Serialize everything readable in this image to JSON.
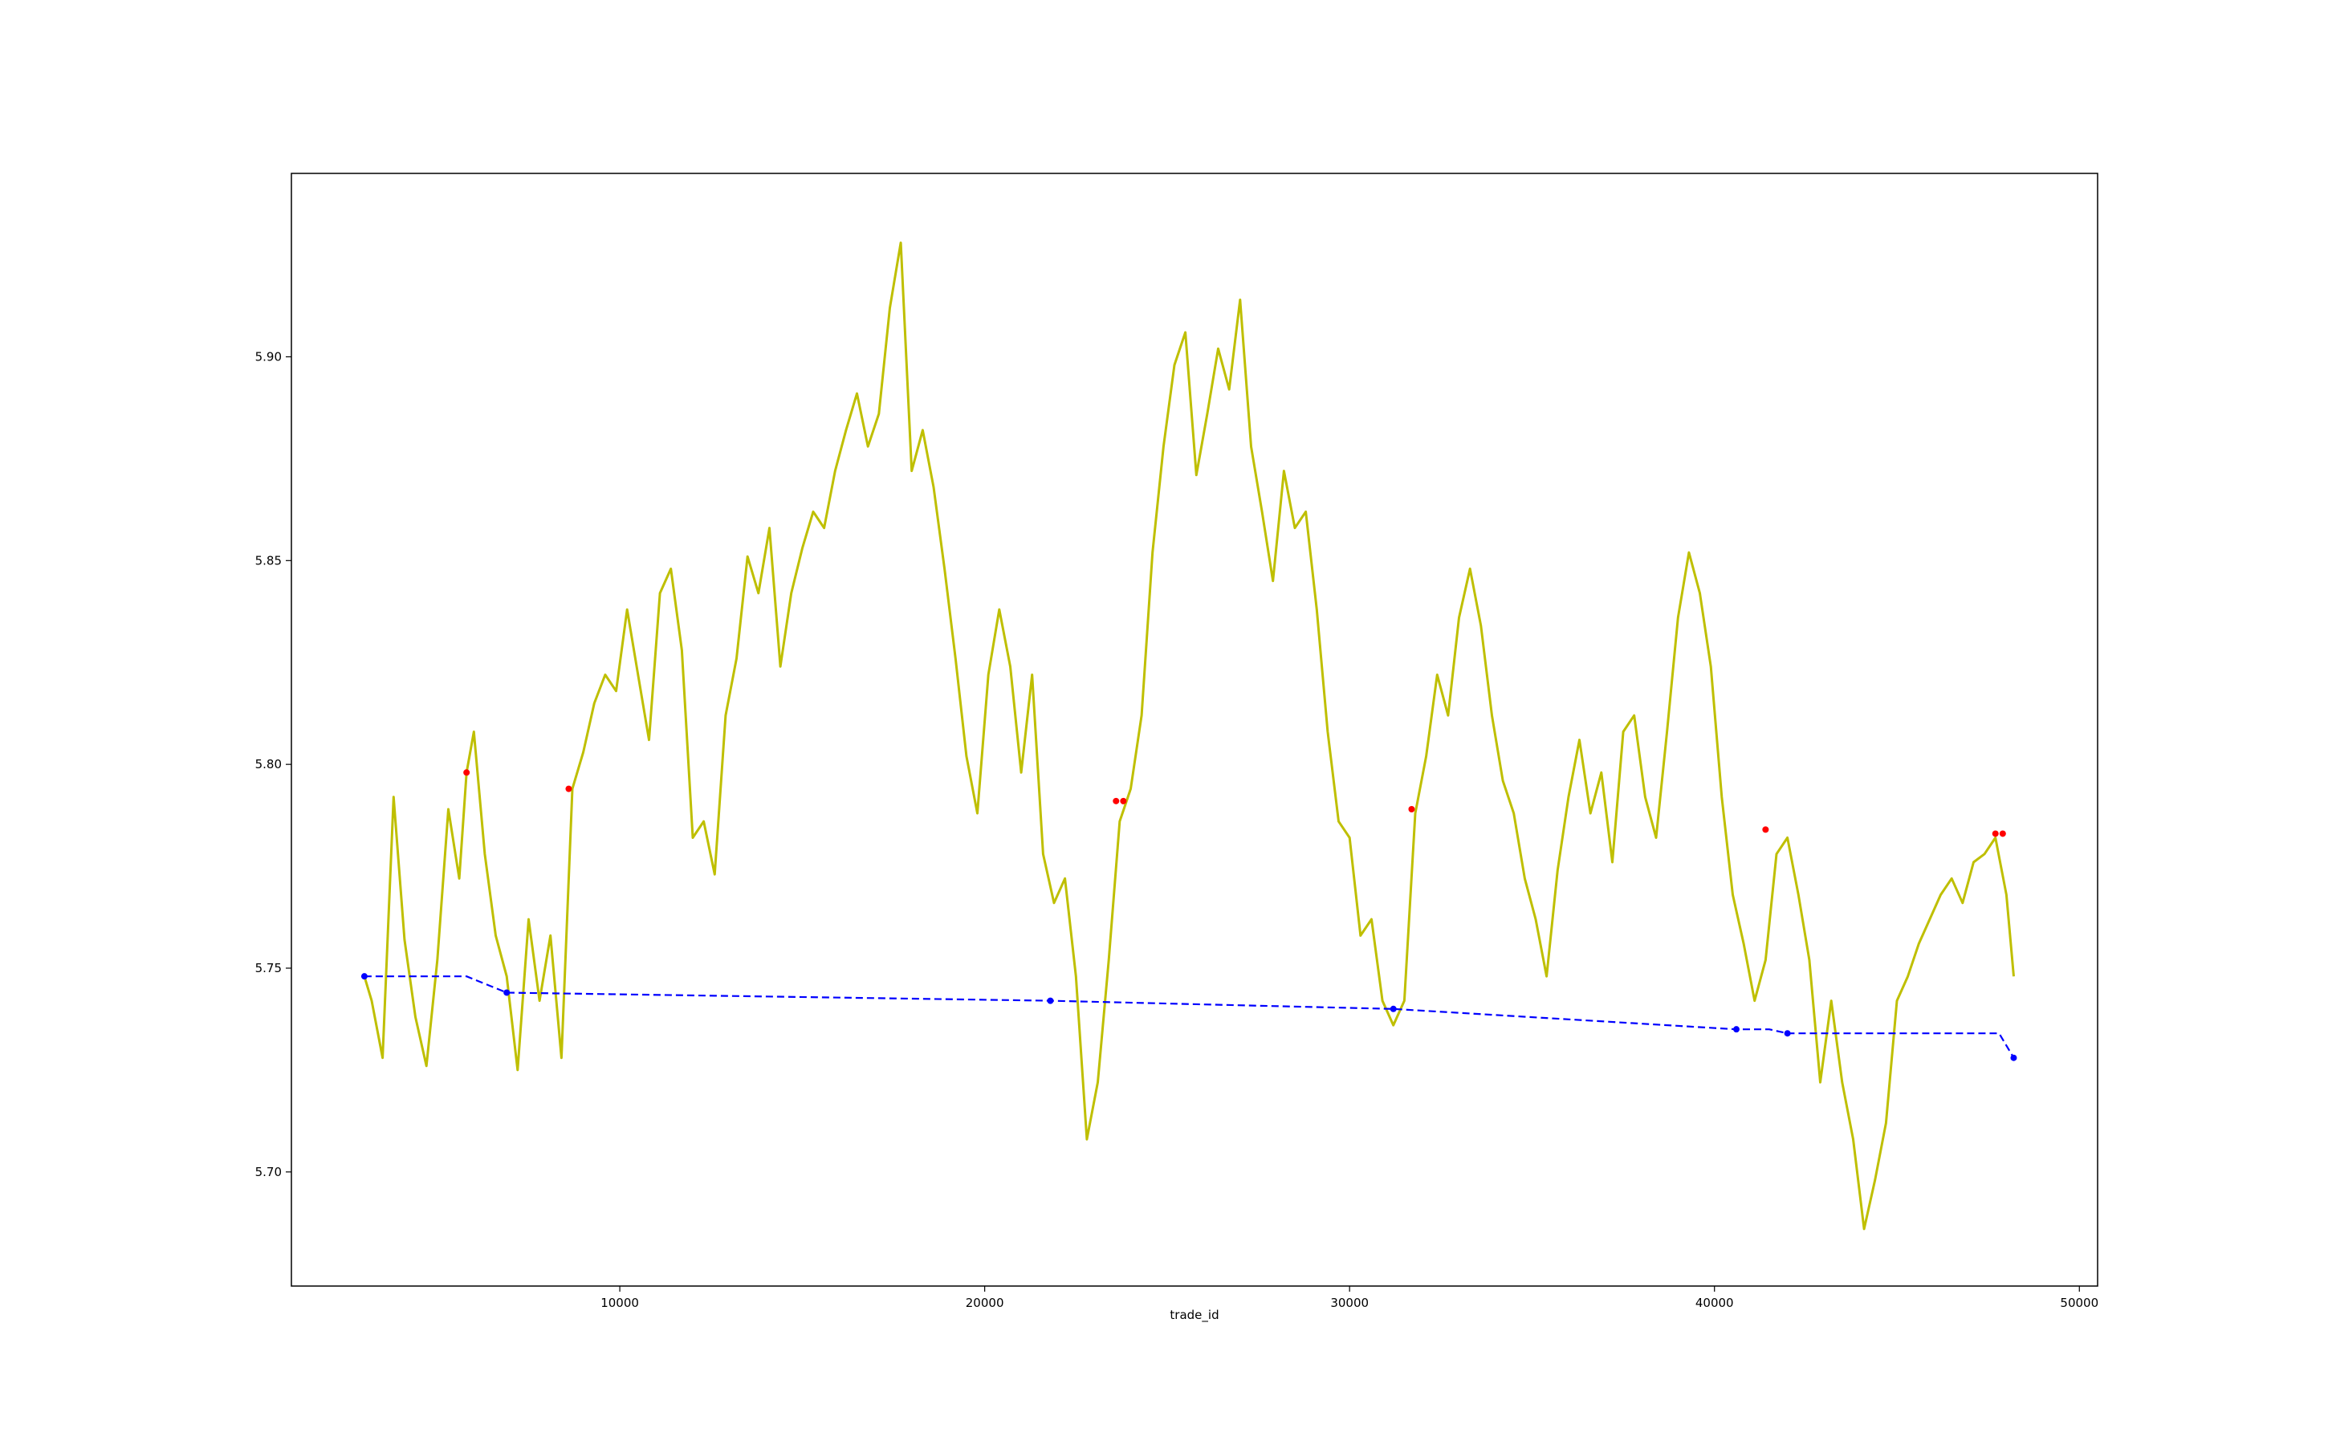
{
  "chart_data": {
    "type": "line",
    "title": "",
    "xlabel": "trade_id",
    "ylabel": "",
    "xlim": [
      1000,
      50500
    ],
    "ylim": [
      5.672,
      5.945
    ],
    "grid": false,
    "legend": "none",
    "x_ticks": [
      {
        "value": 10000,
        "label": "10000"
      },
      {
        "value": 20000,
        "label": "20000"
      },
      {
        "value": 30000,
        "label": "30000"
      },
      {
        "value": 40000,
        "label": "40000"
      },
      {
        "value": 50000,
        "label": "50000"
      }
    ],
    "y_ticks": [
      {
        "value": 5.7,
        "label": "5.70"
      },
      {
        "value": 5.75,
        "label": "5.75"
      },
      {
        "value": 5.8,
        "label": "5.80"
      },
      {
        "value": 5.85,
        "label": "5.85"
      },
      {
        "value": 5.9,
        "label": "5.90"
      }
    ],
    "series": [
      {
        "style": "solid",
        "color": "#bfbf00",
        "x": [
          3000,
          3200,
          3500,
          3800,
          4100,
          4400,
          4700,
          5000,
          5300,
          5600,
          5800,
          6000,
          6300,
          6600,
          6900,
          7200,
          7500,
          7800,
          8100,
          8400,
          8700,
          9000,
          9300,
          9600,
          9900,
          10200,
          10500,
          10800,
          11100,
          11400,
          11700,
          12000,
          12300,
          12600,
          12900,
          13200,
          13500,
          13800,
          14100,
          14400,
          14700,
          15000,
          15300,
          15600,
          15900,
          16200,
          16500,
          16800,
          17100,
          17400,
          17700,
          18000,
          18300,
          18600,
          18900,
          19200,
          19500,
          19800,
          20100,
          20400,
          20700,
          21000,
          21300,
          21600,
          21900,
          22200,
          22500,
          22800,
          23100,
          23400,
          23700,
          24000,
          24300,
          24600,
          24900,
          25200,
          25500,
          25800,
          26100,
          26400,
          26700,
          27000,
          27300,
          27600,
          27900,
          28200,
          28500,
          28800,
          29100,
          29400,
          29700,
          30000,
          30300,
          30600,
          30900,
          31200,
          31500,
          31800,
          32100,
          32400,
          32700,
          33000,
          33300,
          33600,
          33900,
          34200,
          34500,
          34800,
          35100,
          35400,
          35700,
          36000,
          36300,
          36600,
          36900,
          37200,
          37500,
          37800,
          38100,
          38400,
          38700,
          39000,
          39300,
          39600,
          39900,
          40200,
          40500,
          40800,
          41100,
          41400,
          41700,
          42000,
          42300,
          42600,
          42900,
          43200,
          43500,
          43800,
          44100,
          44400,
          44700,
          45000,
          45300,
          45600,
          45900,
          46200,
          46500,
          46800,
          47100,
          47400,
          47700,
          48000,
          48200
        ],
        "y": [
          5.748,
          5.742,
          5.728,
          5.792,
          5.757,
          5.738,
          5.726,
          5.752,
          5.789,
          5.772,
          5.798,
          5.808,
          5.778,
          5.758,
          5.748,
          5.725,
          5.762,
          5.742,
          5.758,
          5.728,
          5.794,
          5.803,
          5.815,
          5.822,
          5.818,
          5.838,
          5.822,
          5.806,
          5.842,
          5.848,
          5.828,
          5.782,
          5.786,
          5.773,
          5.812,
          5.826,
          5.851,
          5.842,
          5.858,
          5.824,
          5.842,
          5.853,
          5.862,
          5.858,
          5.872,
          5.882,
          5.891,
          5.878,
          5.886,
          5.912,
          5.928,
          5.872,
          5.882,
          5.868,
          5.848,
          5.826,
          5.802,
          5.788,
          5.822,
          5.838,
          5.824,
          5.798,
          5.822,
          5.778,
          5.766,
          5.772,
          5.748,
          5.708,
          5.722,
          5.752,
          5.786,
          5.794,
          5.812,
          5.852,
          5.878,
          5.898,
          5.906,
          5.871,
          5.886,
          5.902,
          5.892,
          5.914,
          5.878,
          5.862,
          5.845,
          5.872,
          5.858,
          5.862,
          5.838,
          5.808,
          5.786,
          5.782,
          5.758,
          5.762,
          5.742,
          5.736,
          5.742,
          5.788,
          5.802,
          5.822,
          5.812,
          5.836,
          5.848,
          5.834,
          5.812,
          5.796,
          5.788,
          5.772,
          5.762,
          5.748,
          5.774,
          5.792,
          5.806,
          5.788,
          5.798,
          5.776,
          5.808,
          5.812,
          5.792,
          5.782,
          5.808,
          5.836,
          5.852,
          5.842,
          5.824,
          5.792,
          5.768,
          5.756,
          5.742,
          5.752,
          5.778,
          5.782,
          5.768,
          5.752,
          5.722,
          5.742,
          5.722,
          5.708,
          5.686,
          5.698,
          5.712,
          5.742,
          5.748,
          5.756,
          5.762,
          5.768,
          5.772,
          5.766,
          5.776,
          5.778,
          5.782,
          5.768,
          5.748
        ]
      },
      {
        "style": "dashed",
        "color": "#0000ff",
        "x": [
          3000,
          5800,
          6900,
          21800,
          31200,
          40600,
          41500,
          42000,
          47800,
          48200
        ],
        "y": [
          5.748,
          5.748,
          5.744,
          5.742,
          5.74,
          5.735,
          5.735,
          5.734,
          5.734,
          5.728
        ]
      },
      {
        "style": "markers",
        "color": "#ff0000",
        "x": [
          5800,
          8600,
          23600,
          23800,
          31700,
          41400,
          47700,
          47900
        ],
        "y": [
          5.798,
          5.794,
          5.791,
          5.791,
          5.789,
          5.784,
          5.783,
          5.783
        ]
      },
      {
        "style": "markers",
        "color": "#0000ff",
        "x": [
          3000,
          6900,
          21800,
          31200,
          40600,
          42000,
          48200
        ],
        "y": [
          5.748,
          5.744,
          5.742,
          5.74,
          5.735,
          5.734,
          5.728
        ]
      }
    ]
  }
}
